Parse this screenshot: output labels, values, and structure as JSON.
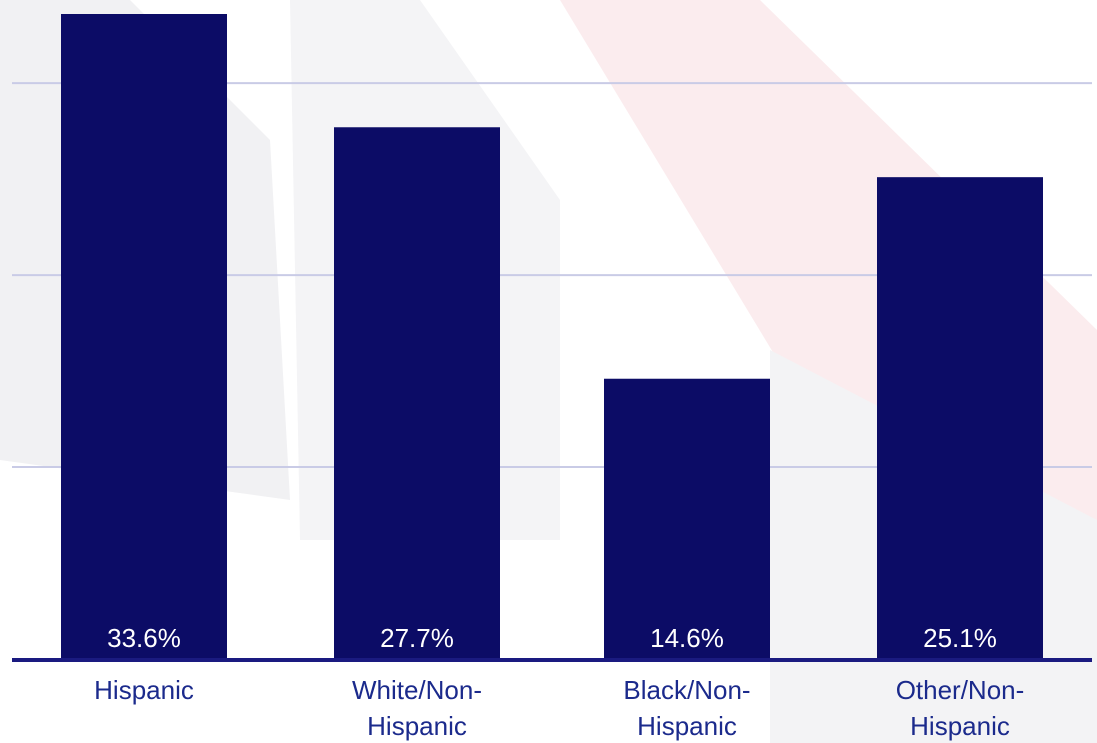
{
  "chart_data": {
    "type": "bar",
    "categories": [
      "Hispanic",
      "White/Non-Hispanic",
      "Black/Non-Hispanic",
      "Other/Non-Hispanic"
    ],
    "category_lines": [
      [
        "Hispanic"
      ],
      [
        "White/Non-",
        "Hispanic"
      ],
      [
        "Black/Non-",
        "Hispanic"
      ],
      [
        "Other/Non-",
        "Hispanic"
      ]
    ],
    "values": [
      33.6,
      27.7,
      14.6,
      25.1
    ],
    "value_labels": [
      "33.6%",
      "27.7%",
      "14.6%",
      "25.1%"
    ],
    "ylim": [
      0,
      34
    ],
    "gridlines": [
      10,
      20,
      30
    ],
    "grid": true,
    "legend": "none"
  },
  "colors": {
    "bar": "#0c0c66",
    "baseline": "#1a1a80",
    "gridline": "#c9cbe6",
    "value_label": "#ffffff",
    "category_label": "#1b2a8c"
  }
}
